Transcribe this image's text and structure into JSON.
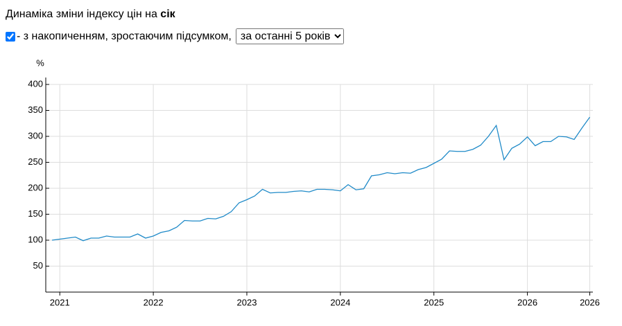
{
  "header": {
    "title_prefix": "Динаміка зміни індексу цін на ",
    "title_product": "сік",
    "checkbox_label": "- з накопиченням, зростаючим підсумком,",
    "period_option": "за останні 5 років"
  },
  "chart_data": {
    "type": "line",
    "y_label": "%",
    "color": "#1f8ac8",
    "grid": true,
    "x": [
      2020.917,
      2021,
      2021.083,
      2021.167,
      2021.25,
      2021.333,
      2021.417,
      2021.5,
      2021.583,
      2021.667,
      2021.75,
      2021.833,
      2021.917,
      2022,
      2022.083,
      2022.167,
      2022.25,
      2022.333,
      2022.417,
      2022.5,
      2022.583,
      2022.667,
      2022.75,
      2022.833,
      2022.917,
      2023,
      2023.083,
      2023.167,
      2023.25,
      2023.333,
      2023.417,
      2023.5,
      2023.583,
      2023.667,
      2023.75,
      2023.833,
      2023.917,
      2024,
      2024.083,
      2024.167,
      2024.25,
      2024.333,
      2024.417,
      2024.5,
      2024.583,
      2024.667,
      2024.75,
      2024.833,
      2024.917,
      2025,
      2025.083,
      2025.167,
      2025.25,
      2025.333,
      2025.417,
      2025.5,
      2025.583,
      2025.667,
      2025.75,
      2025.833,
      2025.917,
      2026,
      2026.083,
      2026.167,
      2026.25,
      2026.333,
      2026.417,
      2026.5,
      2026.583,
      2026.667
    ],
    "values": [
      100,
      102,
      104,
      106,
      99,
      104,
      104,
      108,
      106,
      106,
      106,
      112,
      104,
      108,
      115,
      118,
      125,
      138,
      137,
      137,
      142,
      141,
      146,
      155,
      172,
      178,
      185,
      198,
      191,
      192,
      192,
      194,
      195,
      193,
      198,
      198,
      197,
      195,
      207,
      197,
      199,
      224,
      226,
      230,
      228,
      230,
      229,
      236,
      240,
      248,
      256,
      272,
      271,
      271,
      275,
      283,
      300,
      321,
      255,
      277,
      285,
      299,
      282,
      290,
      290,
      300,
      299,
      294,
      316,
      337
    ],
    "xlim": [
      2020.85,
      2026.7
    ],
    "xticks": [
      2021,
      2022,
      2023,
      2024,
      2025,
      2026,
      {
        "value": 2026.667,
        "label": "2026"
      }
    ],
    "ylim": [
      0,
      400
    ],
    "yticks": [
      50,
      100,
      150,
      200,
      250,
      300,
      350,
      400
    ]
  }
}
